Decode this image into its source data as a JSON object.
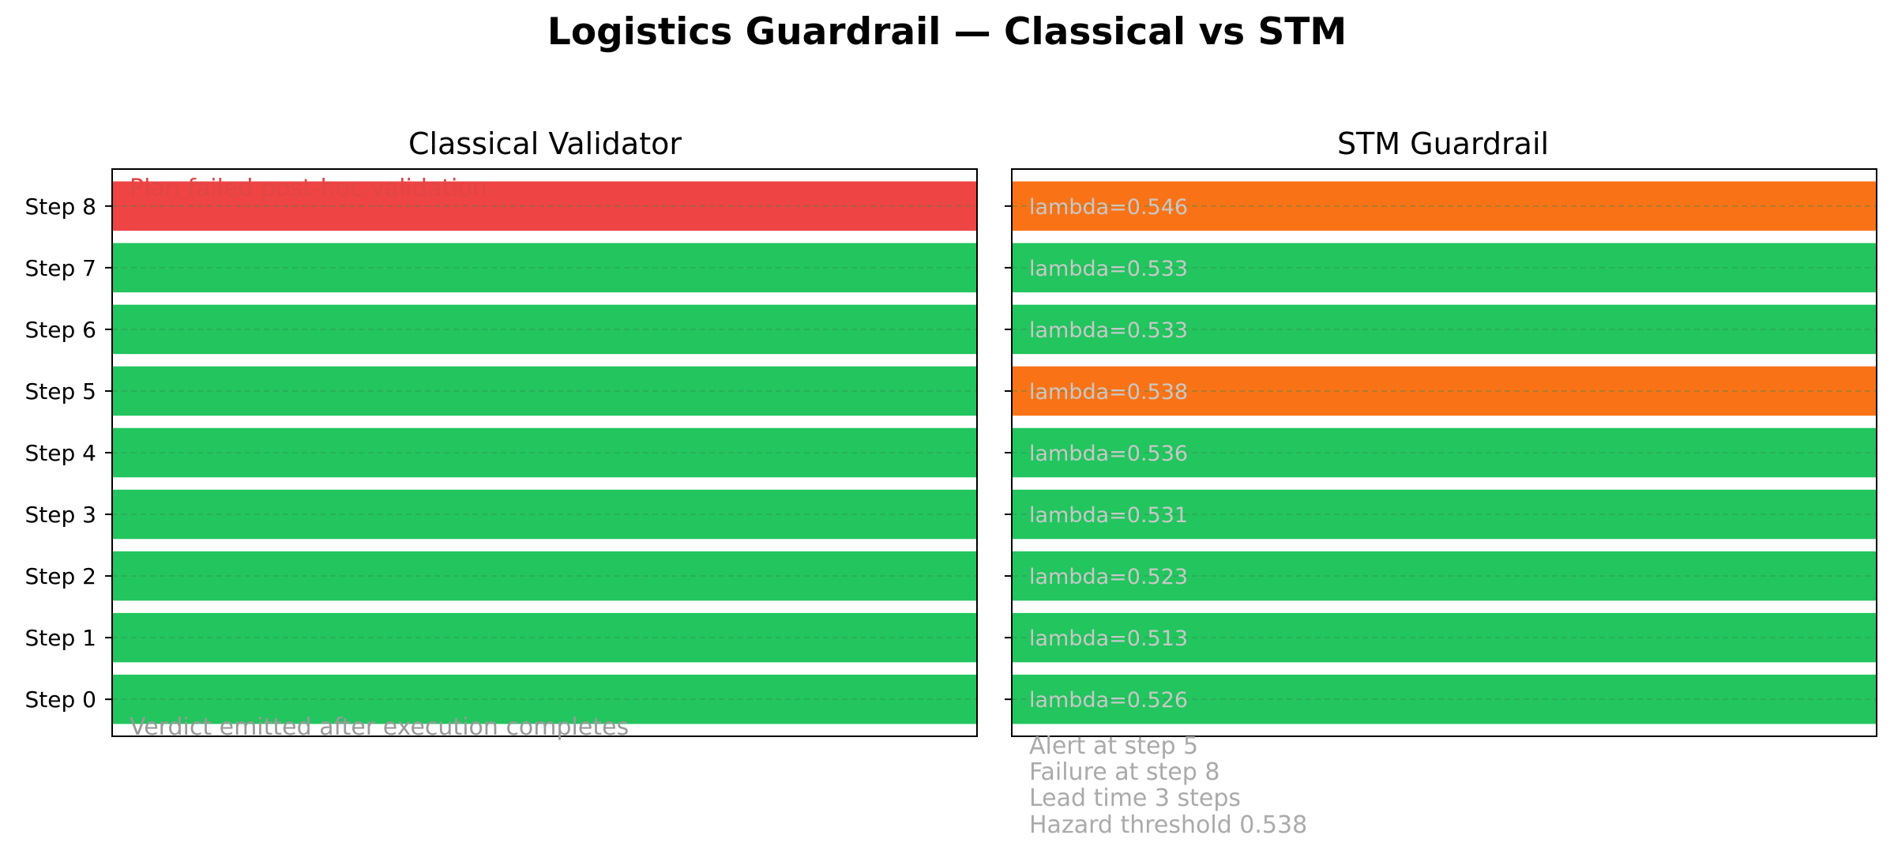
{
  "title": "Logistics Guardrail — Classical vs STM",
  "colors": {
    "green": "#22c55e",
    "red": "#ef4444",
    "orange": "#f97316",
    "note_red": "#e04646",
    "note_gray": "#9a9a9a",
    "bar_label_gray": "#c8c8c8",
    "grid": "#3a8a50"
  },
  "chart_data": [
    {
      "type": "bar",
      "orientation": "horizontal",
      "title": "Classical Validator",
      "categories": [
        "Step 0",
        "Step 1",
        "Step 2",
        "Step 3",
        "Step 4",
        "Step 5",
        "Step 6",
        "Step 7",
        "Step 8"
      ],
      "values": [
        1,
        1,
        1,
        1,
        1,
        1,
        1,
        1,
        1
      ],
      "bar_colors": [
        "green",
        "green",
        "green",
        "green",
        "green",
        "green",
        "green",
        "green",
        "red"
      ],
      "ytick_labels_shown": true,
      "grid": "horizontal dashed",
      "annotations": {
        "top": "Plan failed post-hoc validation",
        "bottom": "Verdict emitted after execution completes"
      }
    },
    {
      "type": "bar",
      "orientation": "horizontal",
      "title": "STM Guardrail",
      "categories": [
        "Step 0",
        "Step 1",
        "Step 2",
        "Step 3",
        "Step 4",
        "Step 5",
        "Step 6",
        "Step 7",
        "Step 8"
      ],
      "values": [
        1,
        1,
        1,
        1,
        1,
        1,
        1,
        1,
        1
      ],
      "bar_colors": [
        "green",
        "green",
        "green",
        "green",
        "green",
        "orange",
        "green",
        "green",
        "orange"
      ],
      "bar_labels": [
        "lambda=0.526",
        "lambda=0.513",
        "lambda=0.523",
        "lambda=0.531",
        "lambda=0.536",
        "lambda=0.538",
        "lambda=0.533",
        "lambda=0.533",
        "lambda=0.546"
      ],
      "ytick_labels_shown": false,
      "grid": "horizontal dashed",
      "annotations": {
        "below": [
          "Alert at step 5",
          "Failure at step 8",
          "Lead time 3 steps",
          "Hazard threshold 0.538"
        ]
      }
    }
  ]
}
